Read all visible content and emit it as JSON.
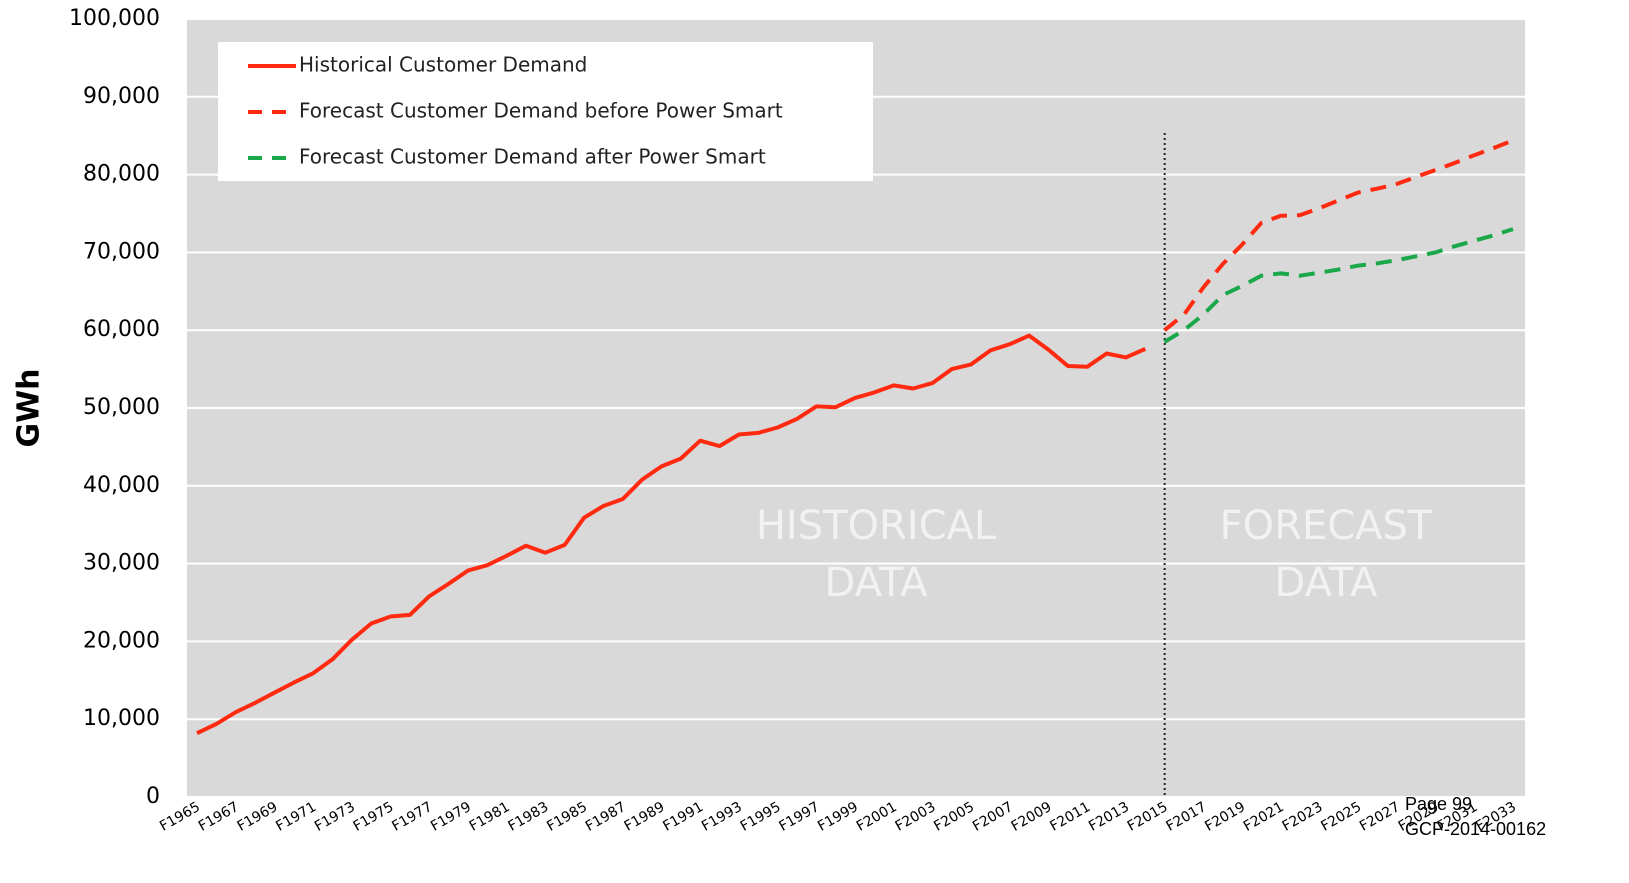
{
  "chart_data": {
    "type": "line",
    "y_label": "GWh",
    "categories": [
      "F1965",
      null,
      "F1967",
      null,
      "F1969",
      null,
      "F1971",
      null,
      "F1973",
      null,
      "F1975",
      null,
      "F1977",
      null,
      "F1979",
      null,
      "F1981",
      null,
      "F1983",
      null,
      "F1985",
      null,
      "F1987",
      null,
      "F1989",
      null,
      "F1991",
      null,
      "F1993",
      null,
      "F1995",
      null,
      "F1997",
      null,
      "F1999",
      null,
      "F2001",
      null,
      "F2003",
      null,
      "F2005",
      null,
      "F2007",
      null,
      "F2009",
      null,
      "F2011",
      null,
      "F2013",
      null,
      "F2015",
      null,
      "F2017",
      null,
      "F2019",
      null,
      "F2021",
      null,
      "F2023",
      null,
      "F2025",
      null,
      "F2027",
      null,
      "F2029",
      null,
      "F2031",
      null,
      "F2033"
    ],
    "series": [
      {
        "name": "Historical Customer Demand",
        "color": "#ff2a10",
        "dash": false,
        "values": [
          8200,
          9400,
          10900,
          12100,
          13400,
          14700,
          15900,
          17700,
          20200,
          22300,
          23200,
          23400,
          25800,
          27400,
          29100,
          29800,
          31000,
          32300,
          31400,
          32400,
          35900,
          37400,
          38300,
          40800,
          42500,
          43500,
          45800,
          45100,
          46600,
          46800,
          47500,
          48600,
          50200,
          50100,
          51300,
          52000,
          52900,
          52500,
          53200,
          55000,
          55600,
          57400,
          58200,
          59300,
          57500,
          55400,
          55300,
          57000,
          56500,
          57600,
          null,
          null,
          null,
          null,
          null,
          null,
          null,
          null,
          null,
          null,
          null,
          null,
          null,
          null,
          null,
          null,
          null,
          null,
          null
        ]
      },
      {
        "name": "Forecast Customer Demand before Power Smart",
        "color": "#ff2a10",
        "dash": true,
        "values": [
          null,
          null,
          null,
          null,
          null,
          null,
          null,
          null,
          null,
          null,
          null,
          null,
          null,
          null,
          null,
          null,
          null,
          null,
          null,
          null,
          null,
          null,
          null,
          null,
          null,
          null,
          null,
          null,
          null,
          null,
          null,
          null,
          null,
          null,
          null,
          null,
          null,
          null,
          null,
          null,
          null,
          null,
          null,
          null,
          null,
          null,
          null,
          null,
          null,
          null,
          60000,
          62000,
          65500,
          68500,
          71000,
          73800,
          74700,
          74800,
          75700,
          76700,
          77700,
          78200,
          78800,
          79700,
          80600,
          81500,
          82500,
          83400,
          84400
        ]
      },
      {
        "name": "Forecast Customer Demand after Power Smart",
        "color": "#1aa84a",
        "dash": true,
        "values": [
          null,
          null,
          null,
          null,
          null,
          null,
          null,
          null,
          null,
          null,
          null,
          null,
          null,
          null,
          null,
          null,
          null,
          null,
          null,
          null,
          null,
          null,
          null,
          null,
          null,
          null,
          null,
          null,
          null,
          null,
          null,
          null,
          null,
          null,
          null,
          null,
          null,
          null,
          null,
          null,
          null,
          null,
          null,
          null,
          null,
          null,
          null,
          null,
          null,
          null,
          58500,
          60000,
          62000,
          64500,
          65700,
          67000,
          67300,
          67000,
          67400,
          67800,
          68300,
          68600,
          69000,
          69500,
          70000,
          70800,
          71500,
          72200,
          73000
        ]
      }
    ],
    "ylim": [
      0,
      100000
    ],
    "yticks": [
      0,
      {
        "value": 10000,
        "label": "10,000"
      },
      {
        "value": 20000,
        "label": "20,000"
      },
      {
        "value": 30000,
        "label": "30,000"
      },
      {
        "value": 40000,
        "label": "40,000"
      },
      {
        "value": 50000,
        "label": "50,000"
      },
      {
        "value": 60000,
        "label": "60,000"
      },
      {
        "value": 70000,
        "label": "70,000"
      },
      {
        "value": 80000,
        "label": "80,000"
      },
      {
        "value": 90000,
        "label": "90,000"
      },
      {
        "value": 100000,
        "label": "100,000"
      }
    ],
    "grid": true,
    "legend": "top-left",
    "divider_category": "F2015",
    "annotations": [
      [
        "HISTORICAL",
        "DATA"
      ],
      [
        "FORECAST",
        "DATA"
      ]
    ]
  },
  "footer": {
    "page": "Page 99",
    "doc_id": "GCP-2014-00162"
  }
}
